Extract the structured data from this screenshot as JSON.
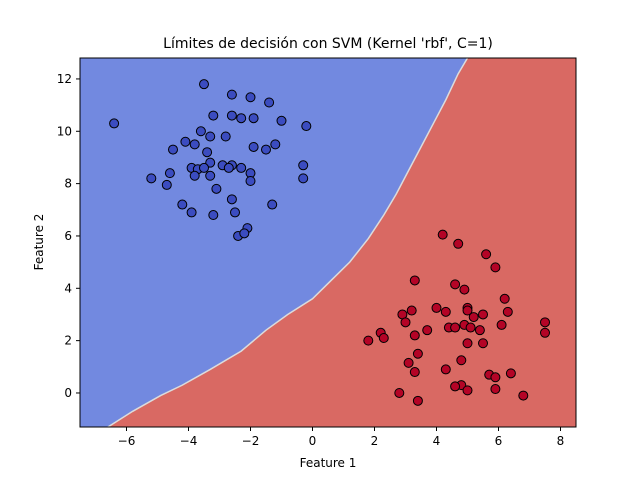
{
  "chart_data": {
    "type": "scatter",
    "title": "Límites de decisión con SVM (Kernel 'rbf', C=1)",
    "xlabel": "Feature 1",
    "ylabel": "Feature 2",
    "xlim": [
      -7.5,
      8.5
    ],
    "ylim": [
      -1.3,
      12.8
    ],
    "xticks": [
      -6,
      -4,
      -2,
      0,
      2,
      4,
      6,
      8
    ],
    "yticks": [
      0,
      2,
      4,
      6,
      8,
      10,
      12
    ],
    "grid": false,
    "legend": "none",
    "colors": {
      "class_0_region": "#7289e0",
      "class_1_region": "#d96963",
      "class_0_point": "#3b4cc0",
      "class_1_point": "#b40426",
      "boundary": "#dcdcdc",
      "marker_edge": "#000000"
    },
    "decision_boundary": [
      {
        "x": -6.6,
        "y": -1.3
      },
      {
        "x": -5.8,
        "y": -0.7
      },
      {
        "x": -4.9,
        "y": -0.1
      },
      {
        "x": -4.2,
        "y": 0.3
      },
      {
        "x": -3.3,
        "y": 0.9
      },
      {
        "x": -2.3,
        "y": 1.6
      },
      {
        "x": -1.5,
        "y": 2.4
      },
      {
        "x": -0.8,
        "y": 3.0
      },
      {
        "x": 0.0,
        "y": 3.6
      },
      {
        "x": 0.6,
        "y": 4.3
      },
      {
        "x": 1.2,
        "y": 5.0
      },
      {
        "x": 1.8,
        "y": 5.9
      },
      {
        "x": 2.3,
        "y": 6.8
      },
      {
        "x": 2.7,
        "y": 7.6
      },
      {
        "x": 3.1,
        "y": 8.5
      },
      {
        "x": 3.5,
        "y": 9.4
      },
      {
        "x": 3.9,
        "y": 10.3
      },
      {
        "x": 4.3,
        "y": 11.2
      },
      {
        "x": 4.7,
        "y": 12.2
      },
      {
        "x": 5.0,
        "y": 12.8
      }
    ],
    "series": [
      {
        "class": 0,
        "points": [
          {
            "x": -6.4,
            "y": 10.3
          },
          {
            "x": -3.5,
            "y": 11.8
          },
          {
            "x": -2.6,
            "y": 11.4
          },
          {
            "x": -2.0,
            "y": 11.3
          },
          {
            "x": -1.4,
            "y": 11.1
          },
          {
            "x": -3.2,
            "y": 10.6
          },
          {
            "x": -2.6,
            "y": 10.6
          },
          {
            "x": -2.3,
            "y": 10.5
          },
          {
            "x": -1.9,
            "y": 10.5
          },
          {
            "x": -1.0,
            "y": 10.4
          },
          {
            "x": -0.2,
            "y": 10.2
          },
          {
            "x": -3.6,
            "y": 10.0
          },
          {
            "x": -3.3,
            "y": 9.8
          },
          {
            "x": -2.8,
            "y": 9.8
          },
          {
            "x": -4.1,
            "y": 9.6
          },
          {
            "x": -3.8,
            "y": 9.5
          },
          {
            "x": -1.9,
            "y": 9.4
          },
          {
            "x": -1.2,
            "y": 9.5
          },
          {
            "x": -4.5,
            "y": 9.3
          },
          {
            "x": -3.4,
            "y": 9.2
          },
          {
            "x": -1.5,
            "y": 9.3
          },
          {
            "x": -3.3,
            "y": 8.8
          },
          {
            "x": -2.9,
            "y": 8.7
          },
          {
            "x": -2.6,
            "y": 8.7
          },
          {
            "x": -2.3,
            "y": 8.6
          },
          {
            "x": -3.9,
            "y": 8.6
          },
          {
            "x": -3.7,
            "y": 8.55
          },
          {
            "x": -3.5,
            "y": 8.6
          },
          {
            "x": -2.7,
            "y": 8.6
          },
          {
            "x": -0.3,
            "y": 8.7
          },
          {
            "x": -4.6,
            "y": 8.4
          },
          {
            "x": -3.8,
            "y": 8.3
          },
          {
            "x": -3.3,
            "y": 8.3
          },
          {
            "x": -2.0,
            "y": 8.4
          },
          {
            "x": -0.3,
            "y": 8.2
          },
          {
            "x": -5.2,
            "y": 8.2
          },
          {
            "x": -4.7,
            "y": 7.95
          },
          {
            "x": -2.0,
            "y": 8.1
          },
          {
            "x": -3.1,
            "y": 7.8
          },
          {
            "x": -2.6,
            "y": 7.4
          },
          {
            "x": -1.3,
            "y": 7.2
          },
          {
            "x": -4.2,
            "y": 7.2
          },
          {
            "x": -3.9,
            "y": 6.9
          },
          {
            "x": -3.2,
            "y": 6.8
          },
          {
            "x": -2.5,
            "y": 6.9
          },
          {
            "x": -2.1,
            "y": 6.3
          },
          {
            "x": -2.4,
            "y": 6.0
          },
          {
            "x": -2.2,
            "y": 6.1
          }
        ]
      },
      {
        "class": 1,
        "points": [
          {
            "x": 4.2,
            "y": 6.05
          },
          {
            "x": 4.7,
            "y": 5.7
          },
          {
            "x": 5.6,
            "y": 5.3
          },
          {
            "x": 5.9,
            "y": 4.8
          },
          {
            "x": 3.3,
            "y": 4.3
          },
          {
            "x": 4.6,
            "y": 4.15
          },
          {
            "x": 4.9,
            "y": 3.95
          },
          {
            "x": 6.2,
            "y": 3.6
          },
          {
            "x": 4.0,
            "y": 3.25
          },
          {
            "x": 5.0,
            "y": 3.25
          },
          {
            "x": 5.0,
            "y": 3.15
          },
          {
            "x": 3.2,
            "y": 3.15
          },
          {
            "x": 4.3,
            "y": 3.1
          },
          {
            "x": 6.3,
            "y": 3.1
          },
          {
            "x": 2.9,
            "y": 3.0
          },
          {
            "x": 5.5,
            "y": 3.0
          },
          {
            "x": 5.2,
            "y": 2.9
          },
          {
            "x": 3.0,
            "y": 2.7
          },
          {
            "x": 3.7,
            "y": 2.4
          },
          {
            "x": 4.4,
            "y": 2.5
          },
          {
            "x": 4.6,
            "y": 2.5
          },
          {
            "x": 4.9,
            "y": 2.6
          },
          {
            "x": 5.1,
            "y": 2.5
          },
          {
            "x": 5.4,
            "y": 2.4
          },
          {
            "x": 6.1,
            "y": 2.6
          },
          {
            "x": 7.5,
            "y": 2.7
          },
          {
            "x": 7.5,
            "y": 2.3
          },
          {
            "x": 2.2,
            "y": 2.3
          },
          {
            "x": 2.3,
            "y": 2.1
          },
          {
            "x": 3.3,
            "y": 2.2
          },
          {
            "x": 1.8,
            "y": 2.0
          },
          {
            "x": 5.0,
            "y": 1.9
          },
          {
            "x": 5.5,
            "y": 1.9
          },
          {
            "x": 3.4,
            "y": 1.5
          },
          {
            "x": 4.8,
            "y": 1.25
          },
          {
            "x": 3.1,
            "y": 1.15
          },
          {
            "x": 4.3,
            "y": 0.9
          },
          {
            "x": 3.3,
            "y": 0.8
          },
          {
            "x": 5.7,
            "y": 0.7
          },
          {
            "x": 5.9,
            "y": 0.6
          },
          {
            "x": 6.4,
            "y": 0.75
          },
          {
            "x": 4.8,
            "y": 0.3
          },
          {
            "x": 4.6,
            "y": 0.25
          },
          {
            "x": 5.9,
            "y": 0.15
          },
          {
            "x": 5.0,
            "y": 0.1
          },
          {
            "x": 2.8,
            "y": 0.0
          },
          {
            "x": 6.8,
            "y": -0.1
          },
          {
            "x": 3.4,
            "y": -0.3
          }
        ]
      }
    ]
  }
}
